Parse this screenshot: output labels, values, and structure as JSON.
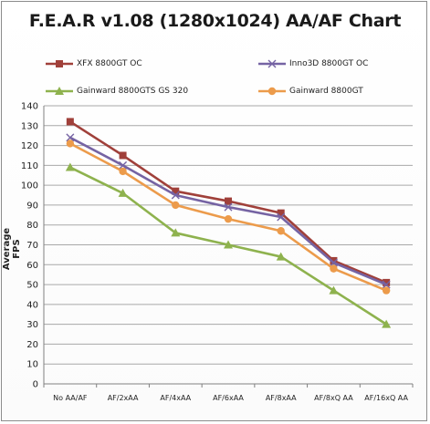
{
  "chart_data": {
    "type": "line",
    "title": "F.E.A.R v1.08 (1280x1024) AA/AF Chart",
    "ylabel": "Average FPS",
    "xlabel": "",
    "ylim": [
      0,
      140
    ],
    "yticks": [
      0,
      10,
      20,
      30,
      40,
      50,
      60,
      70,
      80,
      90,
      100,
      110,
      120,
      130,
      140
    ],
    "grid": true,
    "legend_position": "top",
    "categories": [
      "No AA/AF",
      "AF/2xAA",
      "AF/4xAA",
      "AF/6xAA",
      "AF/8xAA",
      "AF/8xQ AA",
      "AF/16xQ AA"
    ],
    "series": [
      {
        "name": "XFX 8800GT OC",
        "color": "#a0403a",
        "marker": "square",
        "values": [
          132,
          115,
          97,
          92,
          86,
          62,
          51
        ]
      },
      {
        "name": "Inno3D 8800GT OC",
        "color": "#7563a3",
        "marker": "x",
        "values": [
          124,
          110,
          95,
          89,
          84,
          61,
          50
        ]
      },
      {
        "name": "Gainward 8800GTS GS 320",
        "color": "#8eb24e",
        "marker": "triangle",
        "values": [
          109,
          96,
          76,
          70,
          64,
          47,
          30
        ]
      },
      {
        "name": "Gainward 8800GT",
        "color": "#ec9b4b",
        "marker": "circle",
        "values": [
          121,
          107,
          90,
          83,
          77,
          58,
          47
        ]
      }
    ]
  }
}
